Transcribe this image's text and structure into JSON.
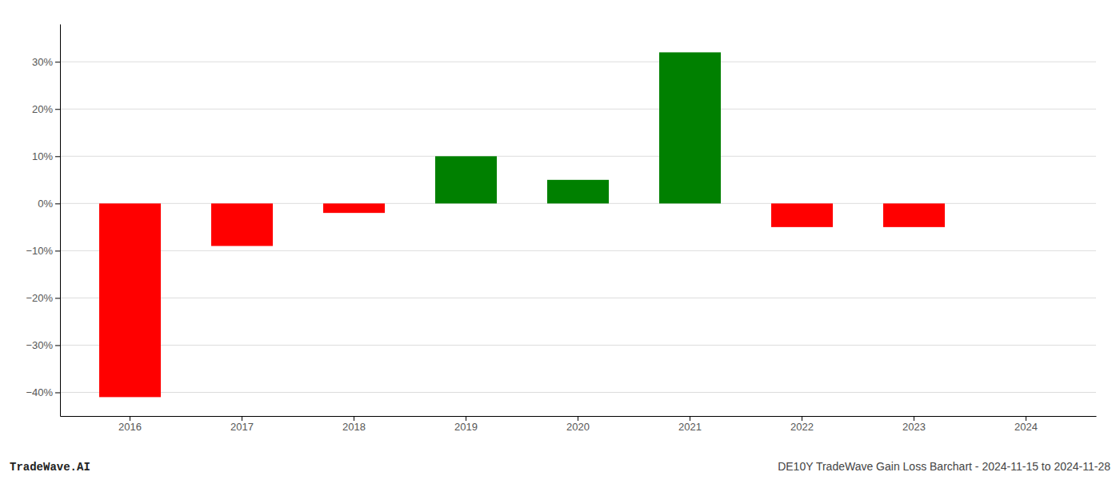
{
  "chart_data": {
    "type": "bar",
    "title": "DE10Y TradeWave Gain Loss Barchart - 2024-11-15 to 2024-11-28",
    "annotations": [
      "TradeWave.AI"
    ],
    "categories": [
      "2016",
      "2017",
      "2018",
      "2019",
      "2020",
      "2021",
      "2022",
      "2023",
      "2024"
    ],
    "values": [
      -41.0,
      -9.0,
      -2.0,
      10.0,
      5.0,
      32.0,
      -5.0,
      -5.0,
      0.0
    ],
    "colors": [
      "#ff0000",
      "#ff0000",
      "#ff0000",
      "#008000",
      "#008000",
      "#008000",
      "#ff0000",
      "#ff0000",
      "#008000"
    ],
    "ylim": [
      -45,
      38
    ],
    "yticks": [
      {
        "value": -40,
        "label": "−40%"
      },
      {
        "value": -30,
        "label": "−30%"
      },
      {
        "value": -20,
        "label": "−20%"
      },
      {
        "value": -10,
        "label": "−10%"
      },
      {
        "value": 0,
        "label": "0%"
      },
      {
        "value": 10,
        "label": "10%"
      },
      {
        "value": 20,
        "label": "20%"
      },
      {
        "value": 30,
        "label": "30%"
      }
    ],
    "grid": true
  }
}
